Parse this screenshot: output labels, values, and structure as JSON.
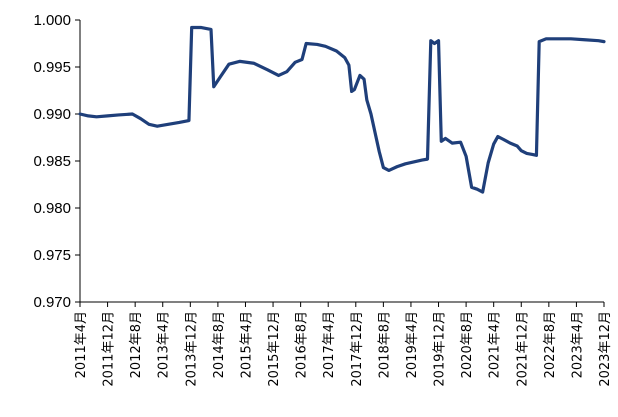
{
  "chart_data": {
    "type": "line",
    "title": "",
    "xlabel": "",
    "ylabel": "",
    "ylim": [
      0.97,
      1.0
    ],
    "yticks": [
      "1.000",
      "0.995",
      "0.990",
      "0.985",
      "0.980",
      "0.975",
      "0.970"
    ],
    "grid": false,
    "legend": "none",
    "x_tick_labels": [
      "2011年4月",
      "2011年12月",
      "2012年8月",
      "2013年4月",
      "2013年12月",
      "2014年8月",
      "2015年4月",
      "2015年12月",
      "2016年8月",
      "2017年4月",
      "2017年12月",
      "2018年8月",
      "2019年4月",
      "2019年12月",
      "2020年8月",
      "2021年4月",
      "2021年12月",
      "2022年8月",
      "2023年4月",
      "2023年12月"
    ],
    "series": [
      {
        "color": "#1f3f7a",
        "points": [
          [
            0,
            0.99
          ],
          [
            0.3,
            0.9898
          ],
          [
            0.6,
            0.9897
          ],
          [
            1,
            0.9898
          ],
          [
            1.4,
            0.9899
          ],
          [
            1.9,
            0.99
          ],
          [
            2.2,
            0.9895
          ],
          [
            2.5,
            0.9889
          ],
          [
            2.8,
            0.9887
          ],
          [
            3.2,
            0.9889
          ],
          [
            3.6,
            0.9891
          ],
          [
            3.95,
            0.9893
          ],
          [
            4.05,
            0.9992
          ],
          [
            4.4,
            0.9992
          ],
          [
            4.75,
            0.999
          ],
          [
            4.85,
            0.9929
          ],
          [
            5.1,
            0.994
          ],
          [
            5.4,
            0.9953
          ],
          [
            5.8,
            0.9956
          ],
          [
            6.3,
            0.9954
          ],
          [
            6.8,
            0.9947
          ],
          [
            7.2,
            0.9941
          ],
          [
            7.5,
            0.9945
          ],
          [
            7.8,
            0.9955
          ],
          [
            8.05,
            0.9958
          ],
          [
            8.2,
            0.9975
          ],
          [
            8.6,
            0.9974
          ],
          [
            8.9,
            0.9972
          ],
          [
            9.3,
            0.9967
          ],
          [
            9.6,
            0.996
          ],
          [
            9.75,
            0.9952
          ],
          [
            9.85,
            0.9924
          ],
          [
            9.95,
            0.9926
          ],
          [
            10.15,
            0.9941
          ],
          [
            10.3,
            0.9937
          ],
          [
            10.4,
            0.9915
          ],
          [
            10.55,
            0.99
          ],
          [
            10.7,
            0.988
          ],
          [
            10.85,
            0.986
          ],
          [
            11.0,
            0.9843
          ],
          [
            11.2,
            0.984
          ],
          [
            11.5,
            0.9844
          ],
          [
            11.8,
            0.9847
          ],
          [
            12.1,
            0.9849
          ],
          [
            12.4,
            0.9851
          ],
          [
            12.6,
            0.9852
          ],
          [
            12.72,
            0.9978
          ],
          [
            12.85,
            0.9975
          ],
          [
            13.0,
            0.9978
          ],
          [
            13.1,
            0.9871
          ],
          [
            13.25,
            0.9874
          ],
          [
            13.5,
            0.9869
          ],
          [
            13.8,
            0.987
          ],
          [
            14.0,
            0.9855
          ],
          [
            14.2,
            0.9822
          ],
          [
            14.4,
            0.982
          ],
          [
            14.6,
            0.9817
          ],
          [
            14.8,
            0.9848
          ],
          [
            15.0,
            0.9868
          ],
          [
            15.15,
            0.9876
          ],
          [
            15.35,
            0.9873
          ],
          [
            15.6,
            0.9869
          ],
          [
            15.85,
            0.9866
          ],
          [
            16.0,
            0.9861
          ],
          [
            16.2,
            0.9858
          ],
          [
            16.4,
            0.9857
          ],
          [
            16.55,
            0.9856
          ],
          [
            16.65,
            0.9977
          ],
          [
            16.9,
            0.998
          ],
          [
            17.3,
            0.998
          ],
          [
            17.8,
            0.998
          ],
          [
            18.3,
            0.9979
          ],
          [
            18.8,
            0.9978
          ],
          [
            19.0,
            0.9977
          ]
        ]
      }
    ]
  }
}
